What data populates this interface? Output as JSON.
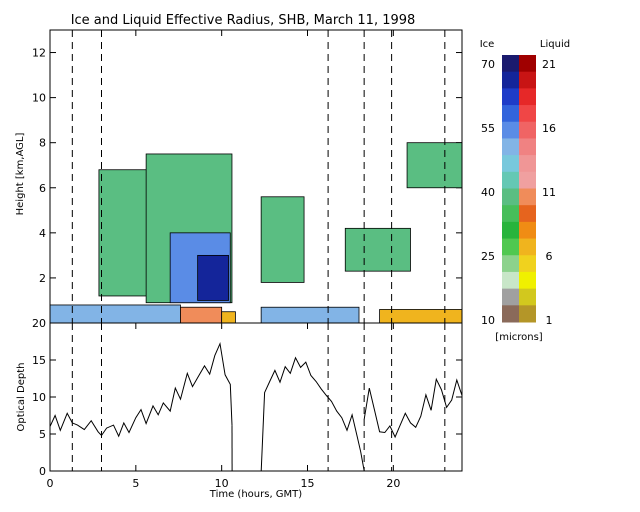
{
  "chart_data": [
    {
      "type": "heatmap",
      "title": "Ice and Liquid Effective Radius, SHB, March 11, 1998",
      "xlabel": "",
      "ylabel": "Height [km,AGL]",
      "xlim": [
        0,
        24
      ],
      "ylim": [
        0,
        13
      ],
      "yticks": [
        2,
        4,
        6,
        8,
        10,
        12
      ],
      "dashed_times": [
        1.3,
        3.0,
        16.2,
        18.3,
        19.9,
        23.0
      ],
      "cloud_regions": [
        {
          "phase": "ice",
          "value": 40,
          "t_start": 2.85,
          "t_end": 6.4,
          "z_bottom": 1.2,
          "z_top": 6.8
        },
        {
          "phase": "ice",
          "value": 40,
          "t_start": 5.6,
          "t_end": 10.6,
          "z_bottom": 0.9,
          "z_top": 7.5
        },
        {
          "phase": "ice",
          "value": 55,
          "t_start": 7.0,
          "t_end": 10.5,
          "z_bottom": 0.9,
          "z_top": 4.0
        },
        {
          "phase": "ice",
          "value": 68,
          "t_start": 8.6,
          "t_end": 10.4,
          "z_bottom": 1.0,
          "z_top": 3.0
        },
        {
          "phase": "ice",
          "value": 40,
          "t_start": 12.3,
          "t_end": 14.8,
          "z_bottom": 1.8,
          "z_top": 5.6
        },
        {
          "phase": "ice",
          "value": 40,
          "t_start": 17.2,
          "t_end": 21.0,
          "z_bottom": 2.3,
          "z_top": 4.2
        },
        {
          "phase": "ice",
          "value": 40,
          "t_start": 20.8,
          "t_end": 24.0,
          "z_bottom": 6.0,
          "z_top": 8.0
        },
        {
          "phase": "ice",
          "value": 50,
          "t_start": 0.0,
          "t_end": 7.6,
          "z_bottom": 0.0,
          "z_top": 0.8
        },
        {
          "phase": "liquid",
          "value": 11,
          "t_start": 7.6,
          "t_end": 10.0,
          "z_bottom": 0.0,
          "z_top": 0.7
        },
        {
          "phase": "liquid",
          "value": 6,
          "t_start": 10.0,
          "t_end": 10.8,
          "z_bottom": 0.0,
          "z_top": 0.5
        },
        {
          "phase": "ice",
          "value": 50,
          "t_start": 12.3,
          "t_end": 18.0,
          "z_bottom": 0.0,
          "z_top": 0.7
        },
        {
          "phase": "liquid",
          "value": 6,
          "t_start": 19.2,
          "t_end": 24.0,
          "z_bottom": 0.0,
          "z_top": 0.6
        }
      ],
      "colorbar": {
        "ice_label": "Ice",
        "liquid_label": "Liquid",
        "ice_ticks": [
          "70",
          "55",
          "40",
          "25",
          "10"
        ],
        "liquid_ticks": [
          "21",
          "16",
          "11",
          "6",
          "1"
        ],
        "units": "[microns]",
        "ice_colors": [
          "#1a1a6e",
          "#14259a",
          "#1e3cc8",
          "#3264dc",
          "#5a8ce6",
          "#82b4e6",
          "#78c8dc",
          "#64c8b4",
          "#5abe82",
          "#46be5a",
          "#28b43c",
          "#50c850",
          "#8cd28c",
          "#c8e6c8",
          "#a0a0a0",
          "#8a6a5a"
        ],
        "liquid_colors": [
          "#a00000",
          "#c81414",
          "#e62828",
          "#f04646",
          "#f06464",
          "#f08282",
          "#f09696",
          "#f0a0a0",
          "#f08c5a",
          "#e6641e",
          "#f08c14",
          "#f0b41e",
          "#f0d21e",
          "#f0f000",
          "#d2c81e",
          "#b49628"
        ]
      }
    },
    {
      "type": "line",
      "title": "",
      "xlabel": "Time (hours, GMT)",
      "ylabel": "Optical Depth",
      "xlim": [
        0,
        24
      ],
      "ylim": [
        0,
        20
      ],
      "xticks": [
        0,
        5,
        10,
        15,
        20
      ],
      "yticks": [
        0,
        5,
        10,
        15,
        20
      ],
      "dashed_times": [
        1.3,
        3.0,
        16.2,
        18.3,
        19.9,
        23.0
      ],
      "series": [
        {
          "segments": [
            {
              "x": [
                0.0,
                0.3,
                0.6,
                1.0,
                1.3,
                1.6,
                2.0,
                2.4,
                2.8,
                3.0,
                3.3,
                3.7,
                4.0,
                4.3,
                4.6,
                5.0,
                5.3,
                5.6,
                6.0,
                6.3,
                6.6,
                7.0,
                7.3,
                7.6,
                8.0,
                8.3,
                8.6,
                9.0,
                9.3,
                9.6,
                9.9,
                10.2,
                10.5,
                10.6
              ],
              "y": [
                6.0,
                7.5,
                5.5,
                7.8,
                6.5,
                6.2,
                5.6,
                6.8,
                5.3,
                4.8,
                5.8,
                6.2,
                4.7,
                6.5,
                5.2,
                7.2,
                8.3,
                6.4,
                8.8,
                7.6,
                9.2,
                8.1,
                11.2,
                9.7,
                13.2,
                11.4,
                12.6,
                14.2,
                13.1,
                15.6,
                17.2,
                13.0,
                11.7,
                6.2
              ]
            },
            {
              "x": [
                10.6,
                10.61
              ],
              "y": [
                6.2,
                0.0
              ]
            },
            {
              "x": [
                12.3,
                12.5,
                12.8,
                13.1,
                13.4,
                13.7,
                14.0,
                14.3,
                14.6,
                14.9,
                15.2,
                15.5,
                15.8,
                16.1,
                16.4,
                16.7,
                17.0,
                17.3,
                17.6,
                17.9,
                18.1,
                18.3
              ],
              "y": [
                0.0,
                10.6,
                12.1,
                13.6,
                12.0,
                14.1,
                13.2,
                15.3,
                14.0,
                14.7,
                12.9,
                12.1,
                11.1,
                10.2,
                9.4,
                8.1,
                7.2,
                5.5,
                7.6,
                4.6,
                2.6,
                0.0
              ]
            },
            {
              "x": [
                18.3,
                18.6,
                18.9,
                19.2,
                19.5,
                19.8,
                20.1,
                20.4,
                20.7,
                21.0,
                21.3,
                21.6,
                21.9,
                22.2,
                22.5,
                22.8,
                23.1,
                23.4,
                23.7,
                24.0
              ],
              "y": [
                7.0,
                11.2,
                8.3,
                5.3,
                5.2,
                6.1,
                4.6,
                6.2,
                7.8,
                6.5,
                5.9,
                7.4,
                10.3,
                8.2,
                12.4,
                11.0,
                8.6,
                9.6,
                12.3,
                10.2
              ]
            }
          ]
        }
      ]
    }
  ]
}
